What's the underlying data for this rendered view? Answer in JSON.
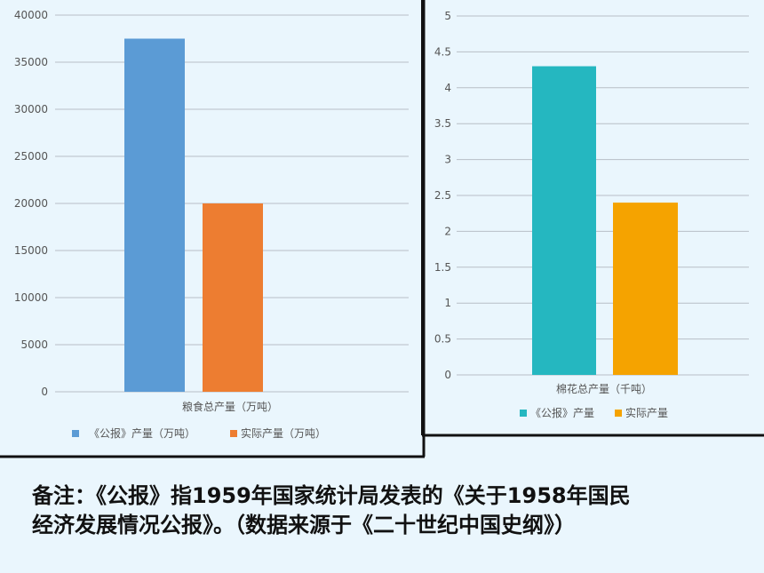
{
  "colors": {
    "background": "#eaf6fd",
    "grid": "#b8bec6",
    "axis_text": "#555555",
    "border": "#111111"
  },
  "chart_data": [
    {
      "type": "bar",
      "categories": [
        "粮食总产量（万吨）"
      ],
      "series": [
        {
          "name": "《公报》产量（万吨）",
          "values": [
            37500
          ],
          "color": "#5b9bd5"
        },
        {
          "name": "实际产量（万吨）",
          "values": [
            20000
          ],
          "color": "#ed7d31"
        }
      ],
      "yticks": [
        "0",
        "5000",
        "10000",
        "15000",
        "20000",
        "25000",
        "30000",
        "35000",
        "40000"
      ],
      "ylim": [
        0,
        40000
      ],
      "grid": true,
      "legend": "bottom"
    },
    {
      "type": "bar",
      "categories": [
        "棉花总产量（千吨）"
      ],
      "series": [
        {
          "name": "《公报》产量",
          "values": [
            4.3
          ],
          "color": "#25b7c0"
        },
        {
          "name": "实际产量",
          "values": [
            2.4
          ],
          "color": "#f5a300"
        }
      ],
      "yticks": [
        "0",
        "0.5",
        "1",
        "1.5",
        "2",
        "2.5",
        "3",
        "3.5",
        "4",
        "4.5",
        "5"
      ],
      "ylim": [
        0,
        5
      ],
      "grid": true,
      "legend": "bottom"
    }
  ],
  "note": {
    "line1": "备注：《公报》指1959年国家统计局发表的《关于1958年国民",
    "line2": "经济发展情况公报》。（数据来源于《二十世纪中国史纲》）"
  }
}
